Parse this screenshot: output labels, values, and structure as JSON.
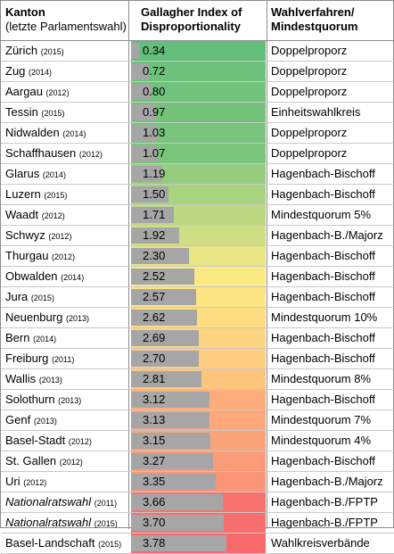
{
  "header": {
    "col1_title": "Kanton",
    "col1_sub": "(letzte Parlamentswahl)",
    "col2_title_line1": "Gallagher Index of",
    "col2_title_line2": "Disproportionality",
    "col3_title_line1": "Wahlverfahren/",
    "col3_title_line2": "Mindestquorum"
  },
  "chart_data": {
    "type": "bar",
    "xlim": [
      0,
      5.35
    ],
    "categories": [
      "Zürich (2015)",
      "Zug (2014)",
      "Aargau (2012)",
      "Tessin (2015)",
      "Nidwalden (2014)",
      "Schaffhausen (2012)",
      "Glarus (2014)",
      "Luzern (2015)",
      "Waadt (2012)",
      "Schwyz (2012)",
      "Thurgau (2012)",
      "Obwalden (2014)",
      "Jura (2015)",
      "Neuenburg (2013)",
      "Bern (2014)",
      "Freiburg (2011)",
      "Wallis (2013)",
      "Solothurn (2013)",
      "Genf (2013)",
      "Basel-Stadt (2012)",
      "St. Gallen (2012)",
      "Uri (2012)",
      "Nationalratswahl (2011)",
      "Nationalratswahl (2015)",
      "Basel-Landschaft (2015)"
    ],
    "rows": [
      {
        "name": "Zürich",
        "year": "(2015)",
        "value": "0.34",
        "method": "Doppelproporz",
        "color": "#63be7b",
        "italic": false
      },
      {
        "name": "Zug",
        "year": "(2014)",
        "value": "0.72",
        "method": "Doppelproporz",
        "color": "#6ec17b",
        "italic": false
      },
      {
        "name": "Aargau",
        "year": "(2012)",
        "value": "0.80",
        "method": "Doppelproporz",
        "color": "#71c27b",
        "italic": false
      },
      {
        "name": "Tessin",
        "year": "(2015)",
        "value": "0.97",
        "method": "Einheitswahlkreis",
        "color": "#75c37b",
        "italic": false
      },
      {
        "name": "Nidwalden",
        "year": "(2014)",
        "value": "1.03",
        "method": "Doppelproporz",
        "color": "#78c47c",
        "italic": false
      },
      {
        "name": "Schaffhausen",
        "year": "(2012)",
        "value": "1.07",
        "method": "Doppelproporz",
        "color": "#7ac47c",
        "italic": false
      },
      {
        "name": "Glarus",
        "year": "(2014)",
        "value": "1.19",
        "method": "Hagenbach-Bischoff",
        "color": "#94cd7e",
        "italic": false
      },
      {
        "name": "Luzern",
        "year": "(2015)",
        "value": "1.50",
        "method": "Hagenbach-Bischoff",
        "color": "#a8d37f",
        "italic": false
      },
      {
        "name": "Waadt",
        "year": "(2012)",
        "value": "1.71",
        "method": "Mindestquorum 5%",
        "color": "#bcd981",
        "italic": false
      },
      {
        "name": "Schwyz",
        "year": "(2012)",
        "value": "1.92",
        "method": "Hagenbach-B./Majorz",
        "color": "#cfde82",
        "italic": false
      },
      {
        "name": "Thurgau",
        "year": "(2012)",
        "value": "2.30",
        "method": "Hagenbach-Bischoff",
        "color": "#e8e583",
        "italic": false
      },
      {
        "name": "Obwalden",
        "year": "(2014)",
        "value": "2.52",
        "method": "Hagenbach-Bischoff",
        "color": "#fbe983",
        "italic": false
      },
      {
        "name": "Jura",
        "year": "(2015)",
        "value": "2.57",
        "method": "Hagenbach-Bischoff",
        "color": "#fce583",
        "italic": false
      },
      {
        "name": "Neuenburg",
        "year": "(2013)",
        "value": "2.62",
        "method": "Mindestquorum 10%",
        "color": "#fddc82",
        "italic": false
      },
      {
        "name": "Bern",
        "year": "(2014)",
        "value": "2.69",
        "method": "Hagenbach-Bischoff",
        "color": "#fdd481",
        "italic": false
      },
      {
        "name": "Freiburg",
        "year": "(2011)",
        "value": "2.70",
        "method": "Hagenbach-Bischoff",
        "color": "#fdcc7f",
        "italic": false
      },
      {
        "name": "Wallis",
        "year": "(2013)",
        "value": "2.81",
        "method": "Mindestquorum 8%",
        "color": "#fdc47e",
        "italic": false
      },
      {
        "name": "Solothurn",
        "year": "(2013)",
        "value": "3.12",
        "method": "Hagenbach-Bischoff",
        "color": "#fcad7b",
        "italic": false
      },
      {
        "name": "Genf",
        "year": "(2013)",
        "value": "3.13",
        "method": "Mindestquorum 7%",
        "color": "#fca87a",
        "italic": false
      },
      {
        "name": "Basel-Stadt",
        "year": "(2012)",
        "value": "3.15",
        "method": "Mindestquorum 4%",
        "color": "#fba379",
        "italic": false
      },
      {
        "name": "St. Gallen",
        "year": "(2012)",
        "value": "3.27",
        "method": "Hagenbach-Bischoff",
        "color": "#fb9b78",
        "italic": false
      },
      {
        "name": "Uri",
        "year": "(2012)",
        "value": "3.35",
        "method": "Hagenbach-B./Majorz",
        "color": "#fa9577",
        "italic": false
      },
      {
        "name": "Nationalratswahl",
        "year": "(2011)",
        "value": "3.66",
        "method": "Hagenbach-B./FPTP",
        "color": "#f8736f",
        "italic": true
      },
      {
        "name": "Nationalratswahl",
        "year": "(2015)",
        "value": "3.70",
        "method": "Hagenbach-B./FPTP",
        "color": "#f86e6e",
        "italic": true
      },
      {
        "name": "Basel-Landschaft",
        "year": "(2015)",
        "value": "3.78",
        "method": "Wahlkreisverbände",
        "color": "#f8696b",
        "italic": false
      }
    ]
  }
}
